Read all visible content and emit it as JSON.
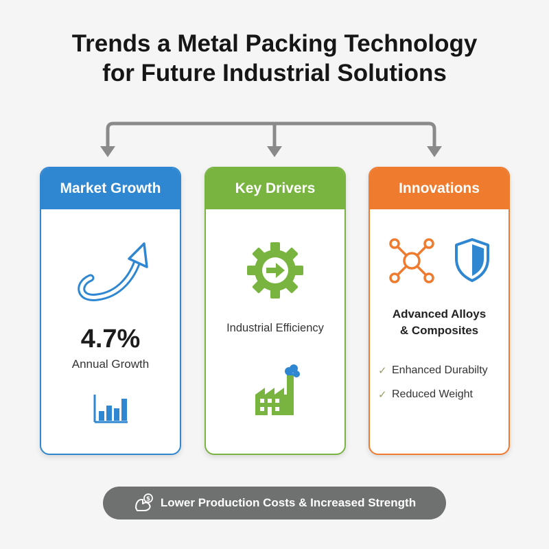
{
  "title": {
    "line1": "Trends a Metal Packing Technology",
    "line2": "for Future Industrial Solutions"
  },
  "colors": {
    "market": "#2f86d1",
    "drivers": "#78b43f",
    "innovations": "#ef7b2f",
    "connector": "#8a8a8a",
    "pill": "#6f7170"
  },
  "cards": {
    "market": {
      "header": "Market Growth",
      "stat": "4.7%",
      "stat_label": "Annual Growth",
      "icons": [
        "curved-up-arrow-icon",
        "bar-chart-icon"
      ]
    },
    "drivers": {
      "header": "Key Drivers",
      "label": "Industrial Efficiency",
      "icons": [
        "gear-arrow-icon",
        "factory-icon"
      ]
    },
    "innovations": {
      "header": "Innovations",
      "heading_line1": "Advanced Alloys",
      "heading_line2": "& Composites",
      "items": [
        "Enhanced Durabilty",
        "Reduced Weight"
      ],
      "icons": [
        "network-nodes-icon",
        "shield-icon",
        "checkmark-icon"
      ]
    }
  },
  "footer": {
    "text": "Lower Production Costs & Increased Strength",
    "icon": "strength-money-icon"
  }
}
